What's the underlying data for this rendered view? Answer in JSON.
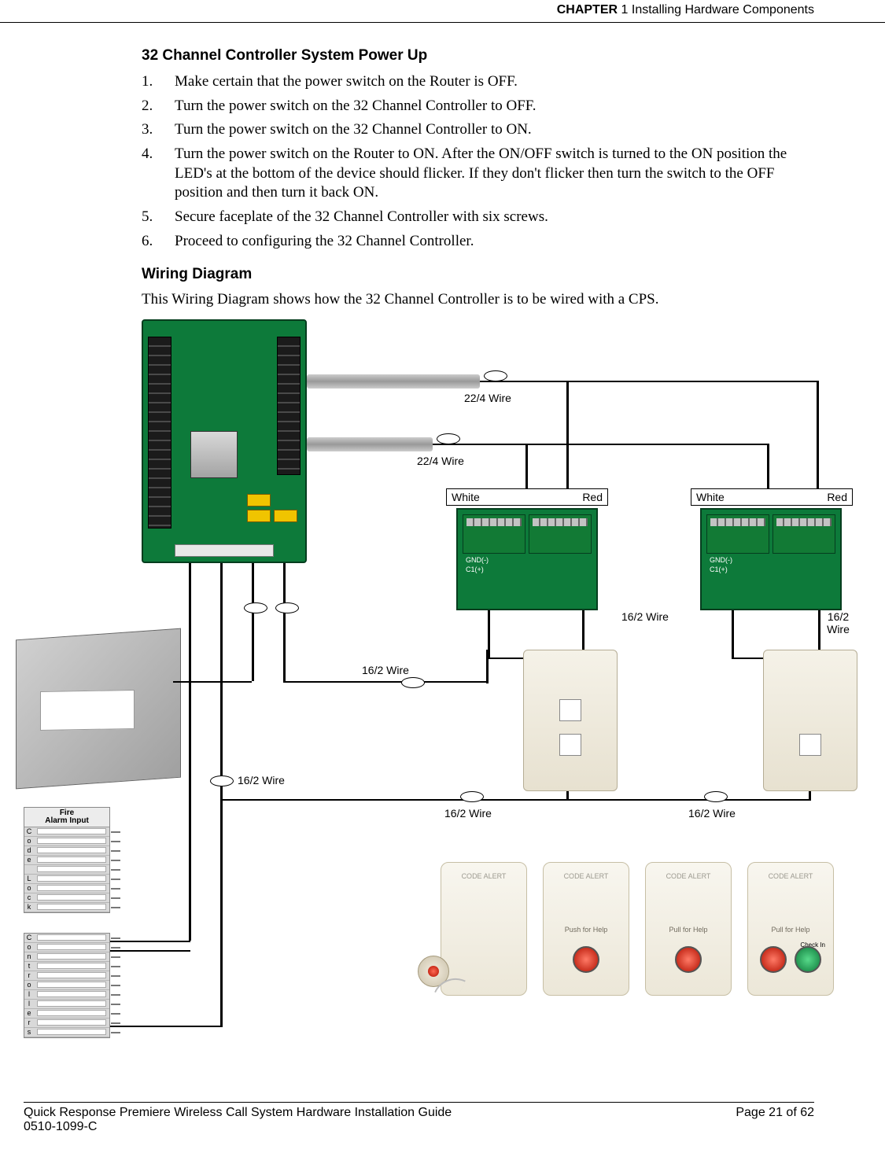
{
  "header": {
    "chapter_prefix": "CHAPTER",
    "chapter_num": "1",
    "chapter_title": "Installing Hardware Components"
  },
  "section1_heading": "32 Channel Controller System Power Up",
  "steps": [
    "Make certain that the power switch on the Router is OFF.",
    "Turn the power switch on the 32 Channel Controller to OFF.",
    "Turn the power switch on the 32 Channel Controller to ON.",
    "Turn the power switch on the Router to ON. After the ON/OFF switch is turned to the ON position the LED's at the bottom of the device should flicker. If they don't flicker then turn the switch to the OFF position and then turn it back ON.",
    "Secure faceplate of the 32 Channel Controller with six screws.",
    "Proceed to configuring the 32 Channel Controller."
  ],
  "section2_heading": "Wiring Diagram",
  "section2_intro": "This Wiring Diagram shows how the 32 Channel Controller is to be wired with a CPS.",
  "diagram": {
    "wire_22_4": "22/4 Wire",
    "wire_16_2": "16/2 Wire",
    "white": "White",
    "red": "Red",
    "pcb_block_top": "GND(-)",
    "pcb_block_mid": "C1(+)",
    "code_alert": "CODE ALERT",
    "push_for_help": "Push for Help",
    "pull_for_help": "Pull for Help",
    "check_in": "Check In",
    "fire_alarm_input": "Fire\nAlarm Input",
    "code_lock_label": "Code Lock",
    "controllers_label": "Controllers",
    "code_lock_letters": [
      "C",
      "o",
      "d",
      "e",
      "",
      "L",
      "o",
      "c",
      "k"
    ],
    "controllers_letters": [
      "C",
      "o",
      "n",
      "t",
      "r",
      "o",
      "l",
      "l",
      "e",
      "r",
      "s"
    ]
  },
  "footer": {
    "guide": "Quick Response Premiere Wireless Call System Hardware Installation Guide",
    "page": "Page 21 of 62",
    "docnum": "0510-1099-C"
  },
  "style": {
    "pcb_green": "#0d7a3a",
    "plate_beige": "#ece7d8",
    "btn_red": "#b20f00",
    "btn_green": "#0d7a3a",
    "line_black": "#000000"
  }
}
